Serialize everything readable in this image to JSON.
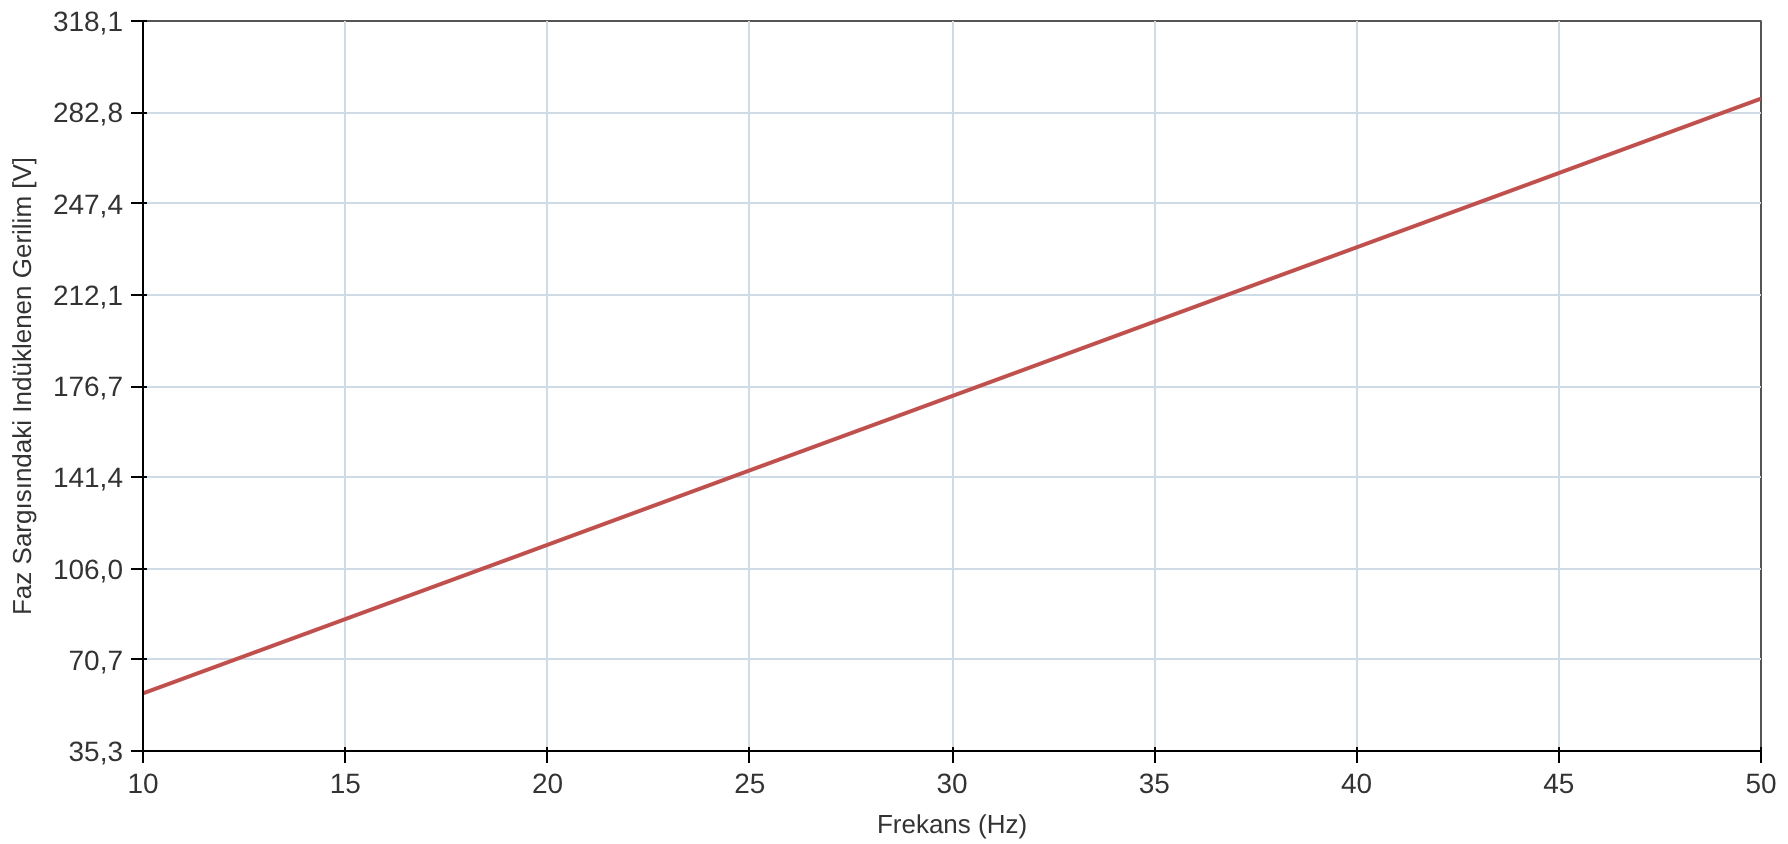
{
  "chart_data": {
    "type": "line",
    "xlabel": "Frekans (Hz)",
    "ylabel": "Faz Sargısındaki Indüklenen Gerilim [V]",
    "x": [
      10,
      50
    ],
    "series": [
      {
        "color": "#c0504d",
        "values": [
          57.6,
          288.0
        ]
      }
    ],
    "xlim": [
      10,
      50
    ],
    "xticks": [
      10,
      15,
      20,
      25,
      30,
      35,
      40,
      45,
      50
    ],
    "ylim": [
      35.3,
      318.1
    ],
    "yticks": [
      {
        "value": 35.3,
        "label": "35,3"
      },
      {
        "value": 70.7,
        "label": "70,7"
      },
      {
        "value": 106.0,
        "label": "106,0"
      },
      {
        "value": 141.4,
        "label": "141,4"
      },
      {
        "value": 176.7,
        "label": "176,7"
      },
      {
        "value": 212.1,
        "label": "212,1"
      },
      {
        "value": 247.4,
        "label": "247,4"
      },
      {
        "value": 282.8,
        "label": "282,8"
      },
      {
        "value": 318.1,
        "label": "318,1"
      }
    ],
    "grid": true,
    "line_style": "solid"
  }
}
